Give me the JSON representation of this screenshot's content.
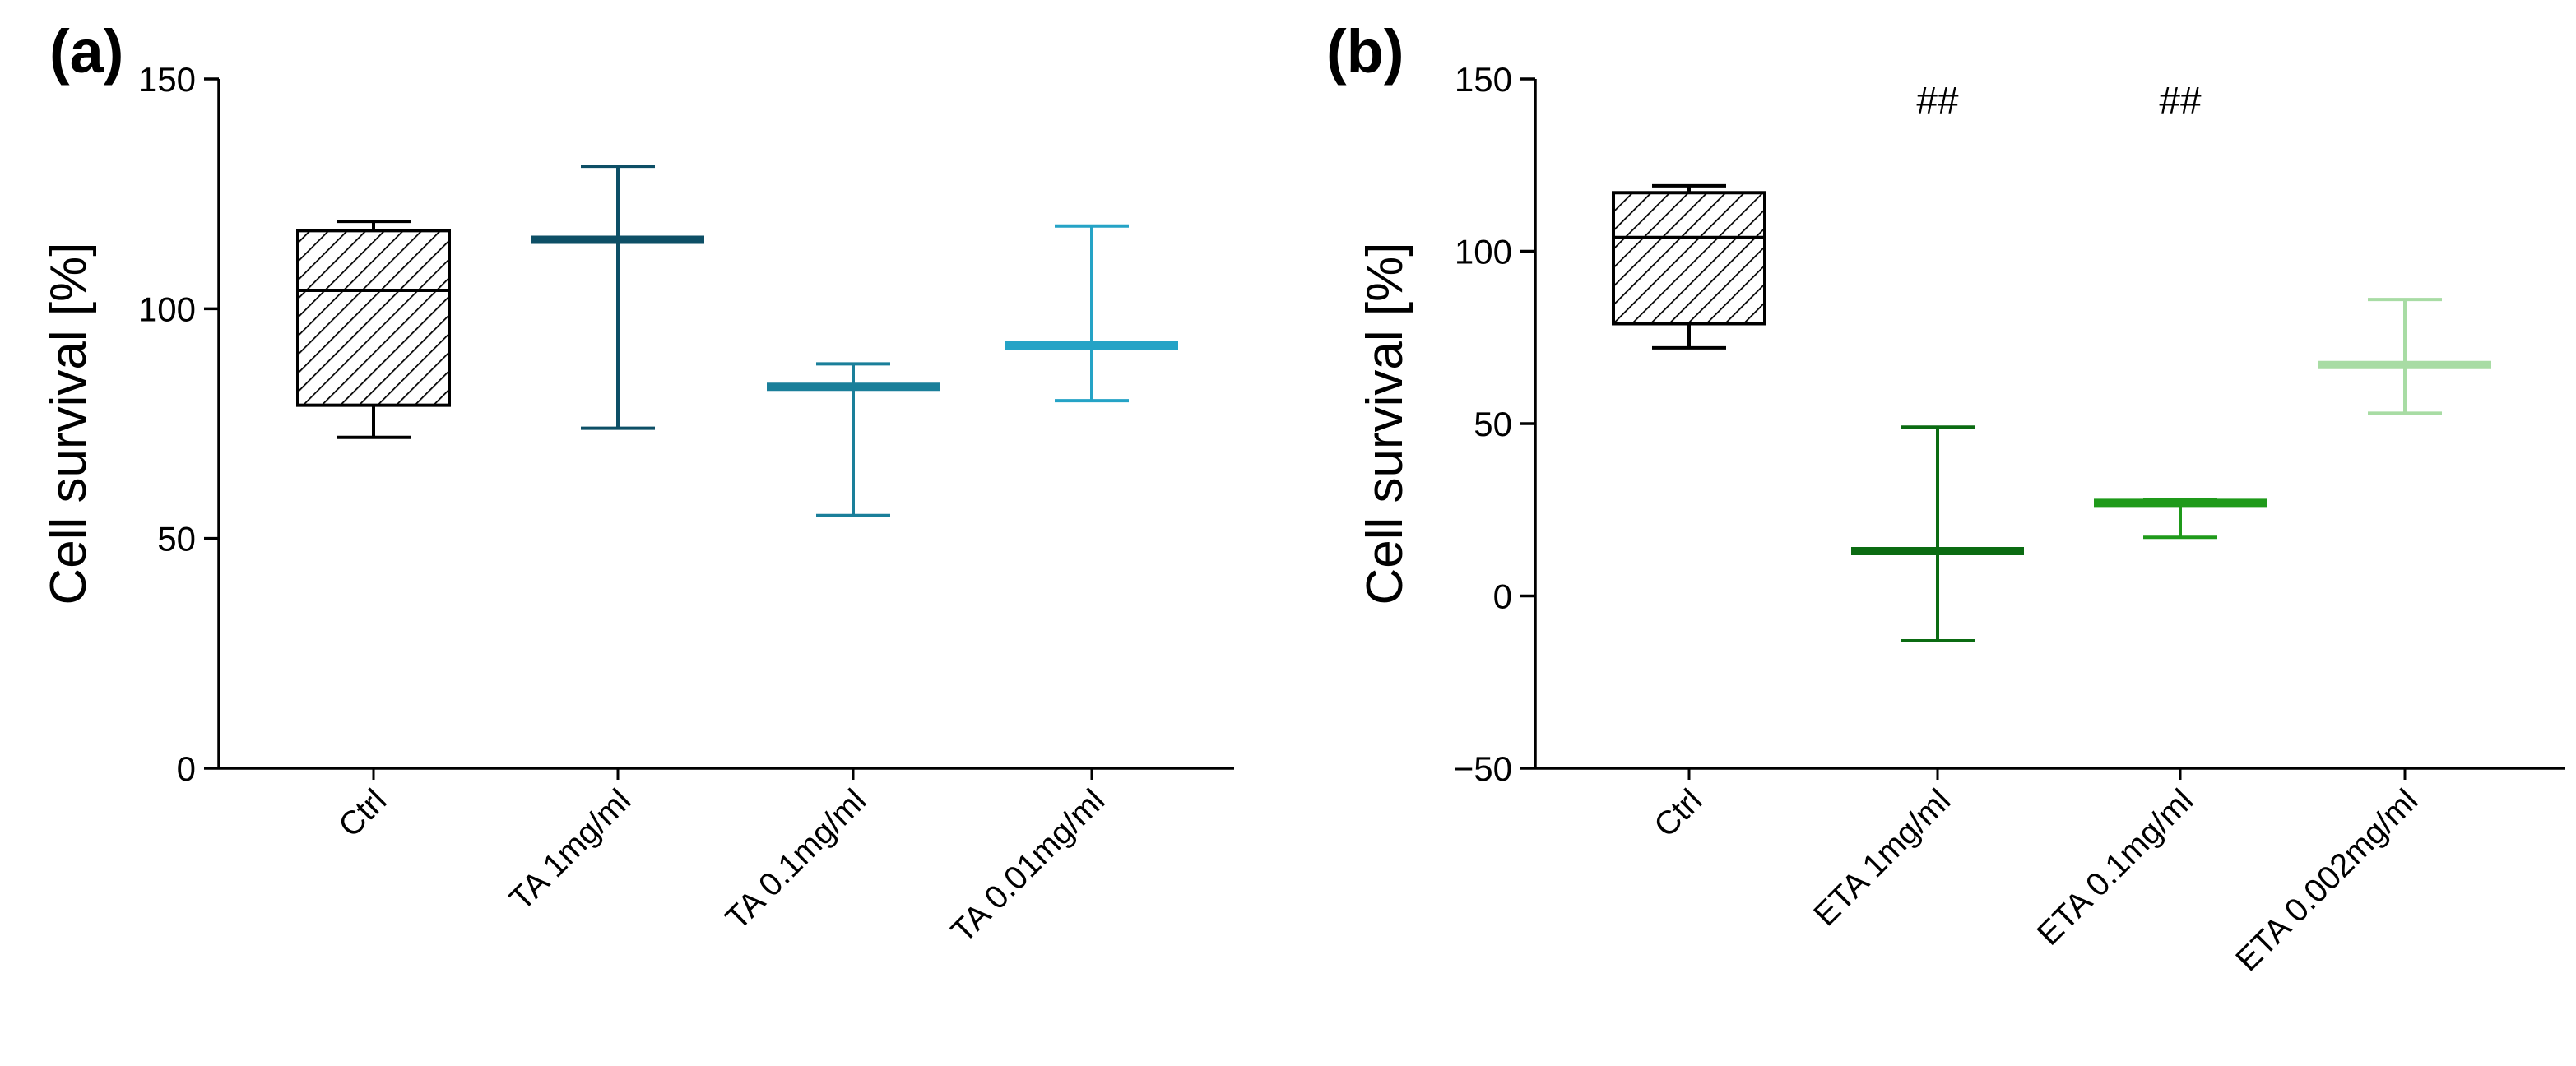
{
  "chart_data": [
    {
      "panel_label": "(a)",
      "type": "box",
      "title": "",
      "xlabel": "",
      "ylabel": "Cell survival [%]",
      "ylim": [
        0,
        150
      ],
      "yticks": [
        0,
        50,
        100,
        150
      ],
      "tick_labels": [
        "0",
        "50",
        "100",
        "150"
      ],
      "grid": false,
      "legend": "none",
      "categories": [
        "Ctrl",
        "TA 1mg/ml",
        "TA 0.1mg/ml",
        "TA 0.01mg/ml"
      ],
      "series": [
        {
          "name": "Ctrl",
          "style": "box",
          "color": "#000000",
          "hatch": true,
          "min": 72,
          "q1": 79,
          "median": 104,
          "q3": 117,
          "max": 119,
          "annotation": ""
        },
        {
          "name": "TA 1mg/ml",
          "style": "mean_range",
          "color": "#0d4f66",
          "min": 74,
          "mean": 115,
          "max": 131,
          "annotation": ""
        },
        {
          "name": "TA 0.1mg/ml",
          "style": "mean_range",
          "color": "#1a7f9a",
          "min": 55,
          "mean": 83,
          "max": 88,
          "annotation": ""
        },
        {
          "name": "TA 0.01mg/ml",
          "style": "mean_range",
          "color": "#25a3c6",
          "min": 80,
          "mean": 92,
          "max": 118,
          "annotation": ""
        }
      ]
    },
    {
      "panel_label": "(b)",
      "type": "box",
      "title": "",
      "xlabel": "",
      "ylabel": "Cell survival [%]",
      "ylim": [
        -50,
        150
      ],
      "yticks": [
        -50,
        0,
        50,
        100,
        150
      ],
      "tick_labels": [
        "−50",
        "0",
        "50",
        "100",
        "150"
      ],
      "grid": false,
      "legend": "none",
      "categories": [
        "Ctrl",
        "ETA 1mg/ml",
        "ETA 0.1mg/ml",
        "ETA 0.002mg/ml"
      ],
      "series": [
        {
          "name": "Ctrl",
          "style": "box",
          "color": "#000000",
          "hatch": true,
          "min": 72,
          "q1": 79,
          "median": 104,
          "q3": 117,
          "max": 119,
          "annotation": ""
        },
        {
          "name": "ETA 1mg/ml",
          "style": "mean_range",
          "color": "#0b6b12",
          "min": -13,
          "mean": 13,
          "max": 49,
          "annotation": "##"
        },
        {
          "name": "ETA 0.1mg/ml",
          "style": "mean_range",
          "color": "#1f9a1a",
          "min": 17,
          "mean": 27,
          "max": 28,
          "annotation": "##"
        },
        {
          "name": "ETA 0.002mg/ml",
          "style": "mean_range",
          "color": "#a8dca4",
          "min": 53,
          "mean": 67,
          "max": 86,
          "annotation": ""
        }
      ]
    }
  ]
}
